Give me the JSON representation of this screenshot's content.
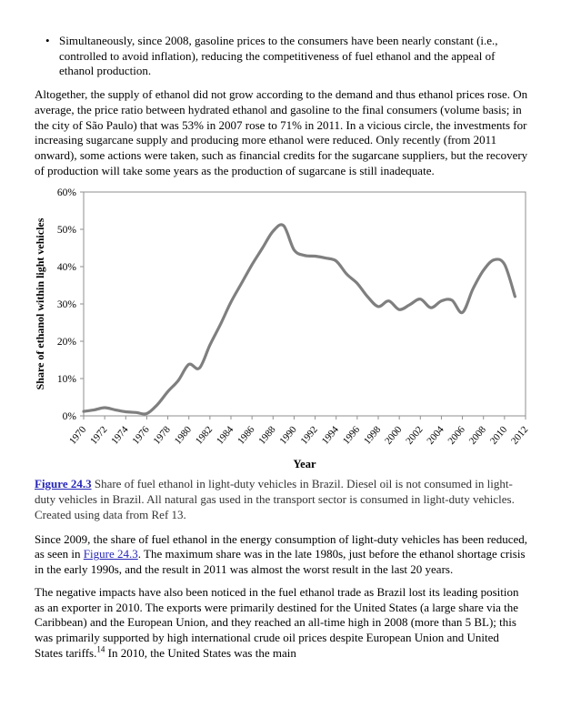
{
  "page": {
    "bullet_item": "Simultaneously, since 2008, gasoline prices to the consumers have been nearly constant (i.e., controlled to avoid inflation), reducing the competitiveness of fuel ethanol and the appeal of ethanol production.",
    "paragraph_1": "Altogether, the supply of ethanol did not grow according to the demand and thus ethanol prices rose. On average, the price ratio between hydrated ethanol and gasoline to the final consumers (volume basis; in the city of São Paulo) that was 53% in 2007 rose to 71% in 2011. In a vicious circle, the investments for increasing sugarcane supply and producing more ethanol were reduced. Only recently (from 2011 onward), some actions were taken, such as financial credits for the sugarcane suppliers, but the recovery of production will take some years as the production of sugarcane is still inadequate.",
    "figure_caption": {
      "label": "Figure 24.3",
      "text": "Share of fuel ethanol in light-duty vehicles in Brazil. Diesel oil is not consumed in light-duty vehicles in Brazil. All natural gas used in the transport sector is consumed in light-duty vehicles. Created using data from Ref 13."
    },
    "paragraph_2": {
      "before_link": "Since 2009, the share of fuel ethanol in the energy consumption of light-duty vehicles has been reduced, as seen in ",
      "link_text": "Figure 24.3",
      "after_link": ". The maximum share was in the late 1980s, just before the ethanol shortage crisis in the early 1990s, and the result in 2011 was almost the worst result in the last 20 years."
    },
    "paragraph_3": {
      "text": "The negative impacts have also been noticed in the fuel ethanol trade as Brazil lost its leading position as an exporter in 2010. The exports were primarily destined for the United States (a large share via the Caribbean) and the European Union, and they reached an all-time high in 2008 (more than 5 BL); this was primarily supported by high international crude oil prices despite European Union and United States tariffs.",
      "footnote_ref": "14",
      "after_ref": " In 2010, the United States was the main"
    },
    "link_color": "#2626b8"
  },
  "chart_data": {
    "type": "line",
    "title": "",
    "xlabel": "Year",
    "ylabel": "Share of ethanol within light vehicles",
    "xlim": [
      1970,
      2012
    ],
    "ylim": [
      0,
      60
    ],
    "grid": false,
    "legend": null,
    "y_ticks": [
      "0%",
      "10%",
      "20%",
      "30%",
      "40%",
      "50%",
      "60%"
    ],
    "x_ticks": [
      1970,
      1972,
      1974,
      1976,
      1978,
      1980,
      1982,
      1984,
      1986,
      1988,
      1990,
      1992,
      1994,
      1996,
      1998,
      2000,
      2002,
      2004,
      2006,
      2008,
      2010,
      2012
    ],
    "x": [
      1970,
      1971,
      1972,
      1973,
      1974,
      1975,
      1976,
      1977,
      1978,
      1979,
      1980,
      1981,
      1982,
      1983,
      1984,
      1985,
      1986,
      1987,
      1988,
      1989,
      1990,
      1991,
      1992,
      1993,
      1994,
      1995,
      1996,
      1997,
      1998,
      1999,
      2000,
      2001,
      2002,
      2003,
      2004,
      2005,
      2006,
      2007,
      2008,
      2009,
      2010,
      2011
    ],
    "values": [
      1.2,
      1.6,
      2.2,
      1.6,
      1.1,
      0.9,
      0.6,
      3.0,
      6.5,
      9.5,
      13.8,
      12.8,
      19.0,
      24.5,
      30.5,
      35.5,
      40.5,
      45.0,
      49.5,
      51.0,
      44.5,
      43.0,
      42.8,
      42.3,
      41.5,
      38.0,
      35.5,
      31.9,
      29.3,
      30.8,
      28.5,
      29.8,
      31.3,
      29.0,
      30.8,
      31.0,
      27.7,
      34.0,
      39.0,
      41.8,
      40.6,
      32.0
    ],
    "line_color": "#7f7f7f",
    "axis_color": "#8f8f8f"
  }
}
